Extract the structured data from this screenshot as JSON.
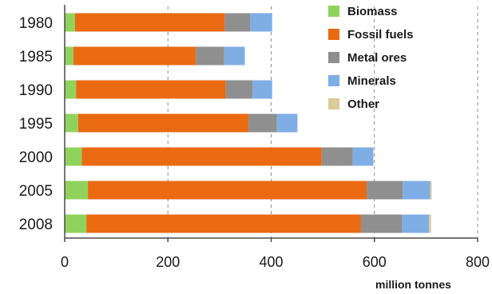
{
  "chart_data": {
    "type": "bar",
    "orientation": "horizontal",
    "stacked": true,
    "categories": [
      "1980",
      "1985",
      "1990",
      "1995",
      "2000",
      "2005",
      "2008"
    ],
    "series": [
      {
        "name": "Biomass",
        "color": "#8fd35c",
        "values": [
          20,
          17,
          22,
          26,
          33,
          45,
          42
        ]
      },
      {
        "name": "Fossil fuels",
        "color": "#ea6a12",
        "values": [
          290,
          237,
          290,
          330,
          465,
          540,
          532
        ]
      },
      {
        "name": "Metal ores",
        "color": "#8f8f8f",
        "values": [
          50,
          55,
          52,
          55,
          60,
          70,
          80
        ]
      },
      {
        "name": "Minerals",
        "color": "#7faee4",
        "values": [
          42,
          40,
          38,
          40,
          40,
          53,
          52
        ]
      },
      {
        "name": "Other",
        "color": "#dccb9a",
        "values": [
          0,
          0,
          0,
          0,
          0,
          3,
          4
        ]
      }
    ],
    "xticks": [
      "0",
      "200",
      "400",
      "600",
      "800"
    ],
    "xlim": [
      0,
      800
    ],
    "xlabel": "million tonnes",
    "grid": "vertical-dashed",
    "legend": "top-right"
  }
}
